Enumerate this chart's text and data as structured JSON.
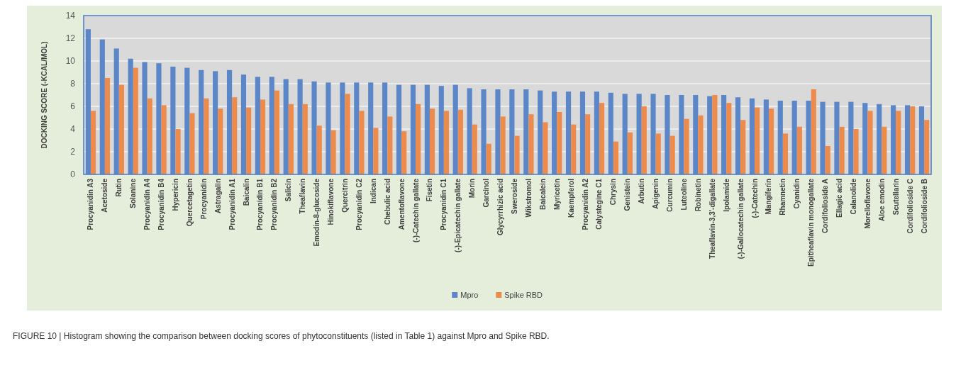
{
  "chart_data": {
    "type": "bar",
    "ylabel": "DOCKING SCORE (-KCAL/MOL)",
    "categories": [
      "Procyanidin A3",
      "Acetoside",
      "Rutin",
      "Solanine",
      "Procyanidin A4",
      "Procyanidin B4",
      "Hypericin",
      "Quercetagetin",
      "Procyanidin",
      "Astragalin",
      "Procyanidin A1",
      "Baicalin",
      "Procyanidin B1",
      "Procyanidin B2",
      "Salicin",
      "Theaflavin",
      "Emodin-8-glucoside",
      "Hinokiflavone",
      "Quercitrin",
      "Procyanidin C2",
      "Indican",
      "Chebulic acid",
      "Amentoflavone",
      "(-)-Catechin gallate",
      "Fisetin",
      "Procyanidin C1",
      "(-)-Epicatechin gallate",
      "Morin",
      "Garcinol",
      "Glycyrrhizic acid",
      "Sweroside",
      "Wikstromol",
      "Baicalein",
      "Myricetin",
      "Kaempferol",
      "Procyanidin A2",
      "Calystegine C1",
      "Chrysin",
      "Genistein",
      "Arbutin",
      "Apigenin",
      "Curcumin",
      "Luteoline",
      "Robinetin",
      "Theaflavin-3,3'-digallate",
      "Ipolamide",
      "(-)-Gallocatechin gallate",
      "(-)-Catechin",
      "Mangiferin",
      "Rhamnetin",
      "Cyanidin",
      "Epitheaflavin monogallate",
      "Cordifolioside A",
      "Ellagic acid",
      "Calanolide",
      "Morelloflavone",
      "Aloe emodin",
      "Scutellarin",
      "Cordifolioside C",
      "Cordifolioside B"
    ],
    "series": [
      {
        "name": "Mpro",
        "color": "#5b87c9",
        "values": [
          12.8,
          11.9,
          11.1,
          10.2,
          9.9,
          9.8,
          9.5,
          9.4,
          9.2,
          9.1,
          9.2,
          8.8,
          8.6,
          8.6,
          8.4,
          8.4,
          8.2,
          8.1,
          8.1,
          8.1,
          8.1,
          8.1,
          7.9,
          7.9,
          7.9,
          7.8,
          7.9,
          7.6,
          7.5,
          7.5,
          7.5,
          7.5,
          7.4,
          7.3,
          7.3,
          7.3,
          7.3,
          7.2,
          7.1,
          7.1,
          7.1,
          7.0,
          7.0,
          7.0,
          6.9,
          7.0,
          6.8,
          6.7,
          6.6,
          6.5,
          6.5,
          6.5,
          6.4,
          6.4,
          6.4,
          6.3,
          6.2,
          6.1,
          6.1,
          6.0
        ]
      },
      {
        "name": "Spike RBD",
        "color": "#ed8b4c",
        "values": [
          5.6,
          8.5,
          7.9,
          9.4,
          6.7,
          6.1,
          4.0,
          5.4,
          6.7,
          5.8,
          6.8,
          5.9,
          6.6,
          7.4,
          6.2,
          6.2,
          4.3,
          3.9,
          7.1,
          5.6,
          4.1,
          5.1,
          3.8,
          6.2,
          5.8,
          5.6,
          5.7,
          4.4,
          2.7,
          5.1,
          3.4,
          5.3,
          4.6,
          5.5,
          4.4,
          5.3,
          6.3,
          2.9,
          3.7,
          6.0,
          3.6,
          3.4,
          4.9,
          5.2,
          7.0,
          6.3,
          4.8,
          5.9,
          5.8,
          3.6,
          4.2,
          7.5,
          2.5,
          4.2,
          4.0,
          5.6,
          4.2,
          5.6,
          6.0,
          4.8
        ]
      }
    ],
    "ylim": [
      0,
      14
    ],
    "yticks": [
      0,
      2,
      4,
      6,
      8,
      10,
      12,
      14
    ],
    "grid": "y",
    "legend": "bottom",
    "annotations": [
      "FIGURE 10 | Histogram showing the comparison between docking scores of phytoconstituents (listed in Table 1) against Mpro and Spike RBD."
    ]
  }
}
